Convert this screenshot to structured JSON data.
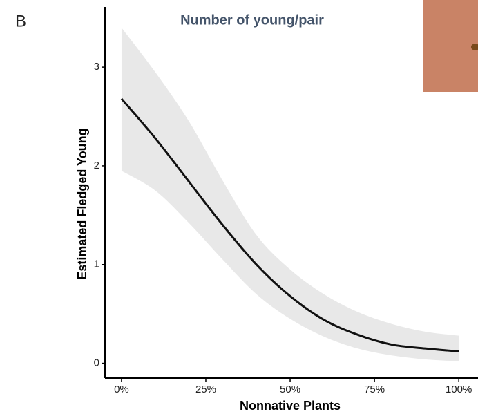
{
  "chart_data": {
    "type": "line",
    "panel_label": "B",
    "title": "Number of young/pair",
    "x_label": "Nonnative Plants",
    "y_label": "Estimated Fledged Young",
    "x": [
      0,
      10,
      20,
      30,
      40,
      50,
      60,
      70,
      80,
      90,
      100
    ],
    "series": [
      {
        "color": "#111111",
        "values": [
          2.68,
          2.28,
          1.84,
          1.4,
          1.0,
          0.68,
          0.44,
          0.29,
          0.19,
          0.15,
          0.12
        ]
      }
    ],
    "band": {
      "color": "#e8e8e8",
      "upper": [
        3.4,
        2.95,
        2.45,
        1.85,
        1.3,
        0.95,
        0.7,
        0.52,
        0.4,
        0.32,
        0.28
      ],
      "lower": [
        1.95,
        1.75,
        1.42,
        1.05,
        0.7,
        0.45,
        0.27,
        0.15,
        0.08,
        0.04,
        0.02
      ]
    },
    "xlim": [
      -4.9,
      105.7
    ],
    "ylim": [
      -0.15,
      3.61
    ],
    "xticks": [
      {
        "value": 0,
        "label": "0%"
      },
      {
        "value": 25,
        "label": "25%"
      },
      {
        "value": 50,
        "label": "50%"
      },
      {
        "value": 75,
        "label": "75%"
      },
      {
        "value": 100,
        "label": "100%"
      }
    ],
    "yticks": [
      0,
      1,
      2,
      3
    ],
    "grid": false
  }
}
